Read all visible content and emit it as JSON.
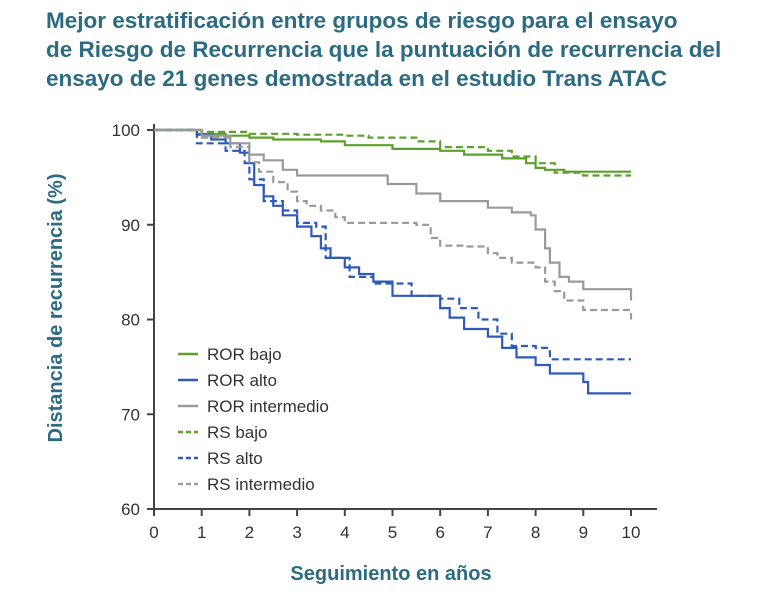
{
  "title_lines": [
    "Mejor estratificación entre grupos de riesgo para el ensayo",
    "de Riesgo de Recurrencia que la puntuación de recurrencia del",
    "ensayo de 21 genes demostrada en el estudio Trans ATAC"
  ],
  "colors": {
    "title": "#2c6b82",
    "axis_label": "#2c6b82",
    "green": "#5ba02a",
    "blue": "#2f5ab8",
    "gray": "#9a9a9a",
    "axis": "#444444"
  },
  "chart_data": {
    "type": "line",
    "title": "Mejor estratificación entre grupos de riesgo para el ensayo de Riesgo de Recurrencia que la puntuación de recurrencia del ensayo de 21 genes demostrada en el estudio Trans ATAC",
    "xlabel": "Seguimiento en años",
    "ylabel": "Distancia de recurrencia (%)",
    "xlim": [
      0,
      10
    ],
    "ylim": [
      60,
      100
    ],
    "xticks": [
      0,
      1,
      2,
      3,
      4,
      5,
      6,
      7,
      8,
      9,
      10
    ],
    "yticks": [
      60,
      70,
      80,
      90,
      100
    ],
    "grid": false,
    "legend_position": "bottom-left",
    "series": [
      {
        "name": "ROR bajo",
        "color": "#5ba02a",
        "dash": "solid",
        "points": [
          [
            0,
            100
          ],
          [
            0.8,
            100
          ],
          [
            0.9,
            99.6
          ],
          [
            1.5,
            99.4
          ],
          [
            2,
            99.2
          ],
          [
            2.5,
            99
          ],
          [
            3.5,
            98.8
          ],
          [
            4,
            98.4
          ],
          [
            5,
            98
          ],
          [
            6,
            97.8
          ],
          [
            6.5,
            97.4
          ],
          [
            7.3,
            97
          ],
          [
            7.8,
            96.5
          ],
          [
            8,
            96
          ],
          [
            8.2,
            95.8
          ],
          [
            8.6,
            95.6
          ],
          [
            10,
            95.6
          ]
        ]
      },
      {
        "name": "ROR alto",
        "color": "#2f5ab8",
        "dash": "solid",
        "points": [
          [
            0,
            100
          ],
          [
            0.8,
            100
          ],
          [
            0.9,
            99.5
          ],
          [
            1.2,
            99
          ],
          [
            1.5,
            98.6
          ],
          [
            1.8,
            97.6
          ],
          [
            2,
            96.5
          ],
          [
            2.1,
            94.2
          ],
          [
            2.3,
            93
          ],
          [
            2.5,
            92
          ],
          [
            2.7,
            91
          ],
          [
            3,
            89.8
          ],
          [
            3.3,
            88.8
          ],
          [
            3.5,
            87.5
          ],
          [
            3.7,
            86.5
          ],
          [
            4,
            85.5
          ],
          [
            4.3,
            84.8
          ],
          [
            4.6,
            84
          ],
          [
            5,
            82.5
          ],
          [
            5.8,
            82.5
          ],
          [
            6,
            81.2
          ],
          [
            6.2,
            80.2
          ],
          [
            6.5,
            79
          ],
          [
            7,
            78.2
          ],
          [
            7.3,
            77
          ],
          [
            7.6,
            76
          ],
          [
            8,
            75.2
          ],
          [
            8.3,
            74.3
          ],
          [
            9,
            73.4
          ],
          [
            9.1,
            72.2
          ],
          [
            10,
            72.2
          ]
        ]
      },
      {
        "name": "ROR intermedio",
        "color": "#9a9a9a",
        "dash": "solid",
        "points": [
          [
            0,
            100
          ],
          [
            0.8,
            100
          ],
          [
            1,
            99.4
          ],
          [
            1.6,
            98.6
          ],
          [
            2,
            97.4
          ],
          [
            2.3,
            96.8
          ],
          [
            2.7,
            95.8
          ],
          [
            3,
            95.2
          ],
          [
            4.5,
            95.2
          ],
          [
            4.9,
            94.3
          ],
          [
            5.5,
            93.3
          ],
          [
            6,
            92.5
          ],
          [
            6.8,
            92.5
          ],
          [
            7,
            91.8
          ],
          [
            7.5,
            91.3
          ],
          [
            7.9,
            91
          ],
          [
            8,
            89.5
          ],
          [
            8.2,
            87.5
          ],
          [
            8.3,
            86
          ],
          [
            8.5,
            84.5
          ],
          [
            8.7,
            84
          ],
          [
            9,
            83.2
          ],
          [
            9.6,
            83.2
          ],
          [
            10,
            82
          ]
        ]
      },
      {
        "name": "RS bajo",
        "color": "#5ba02a",
        "dash": "dashed",
        "points": [
          [
            0,
            100
          ],
          [
            0.8,
            100
          ],
          [
            1,
            99.8
          ],
          [
            2,
            99.6
          ],
          [
            3,
            99.5
          ],
          [
            4,
            99.4
          ],
          [
            4.5,
            99.2
          ],
          [
            5.5,
            98.8
          ],
          [
            6,
            98.2
          ],
          [
            7,
            97.8
          ],
          [
            7.5,
            97.2
          ],
          [
            8,
            96.5
          ],
          [
            8.4,
            95.5
          ],
          [
            9,
            95.2
          ],
          [
            10,
            95.2
          ]
        ]
      },
      {
        "name": "RS alto",
        "color": "#2f5ab8",
        "dash": "dashed",
        "points": [
          [
            0,
            100
          ],
          [
            0.8,
            100
          ],
          [
            0.9,
            98.6
          ],
          [
            1.5,
            97.8
          ],
          [
            1.9,
            96.5
          ],
          [
            2,
            94.8
          ],
          [
            2.3,
            92.5
          ],
          [
            2.7,
            91.5
          ],
          [
            3,
            90.2
          ],
          [
            3.4,
            89.8
          ],
          [
            3.6,
            86.5
          ],
          [
            4.1,
            84.5
          ],
          [
            4.6,
            83.8
          ],
          [
            5,
            83.8
          ],
          [
            5.4,
            82.5
          ],
          [
            6,
            82.2
          ],
          [
            6.4,
            81.2
          ],
          [
            6.8,
            80
          ],
          [
            7.2,
            78.5
          ],
          [
            7.5,
            77.2
          ],
          [
            8,
            77
          ],
          [
            8.3,
            75.8
          ],
          [
            10,
            75.8
          ]
        ]
      },
      {
        "name": "RS intermedio",
        "color": "#9a9a9a",
        "dash": "dashed",
        "points": [
          [
            0,
            100
          ],
          [
            0.8,
            100
          ],
          [
            1,
            99.2
          ],
          [
            1.6,
            98.2
          ],
          [
            2,
            96.6
          ],
          [
            2.2,
            95.6
          ],
          [
            2.5,
            94.5
          ],
          [
            2.8,
            93.5
          ],
          [
            3,
            92.5
          ],
          [
            3.2,
            92
          ],
          [
            3.5,
            91.5
          ],
          [
            3.8,
            90.8
          ],
          [
            4,
            90.2
          ],
          [
            5.5,
            90
          ],
          [
            5.8,
            88.6
          ],
          [
            6,
            87.8
          ],
          [
            6.5,
            87.7
          ],
          [
            7,
            87
          ],
          [
            7.2,
            86.5
          ],
          [
            7.5,
            86
          ],
          [
            8,
            85.5
          ],
          [
            8.2,
            84
          ],
          [
            8.4,
            83
          ],
          [
            8.6,
            82
          ],
          [
            9,
            81
          ],
          [
            9.7,
            81
          ],
          [
            10,
            80
          ]
        ]
      }
    ]
  }
}
